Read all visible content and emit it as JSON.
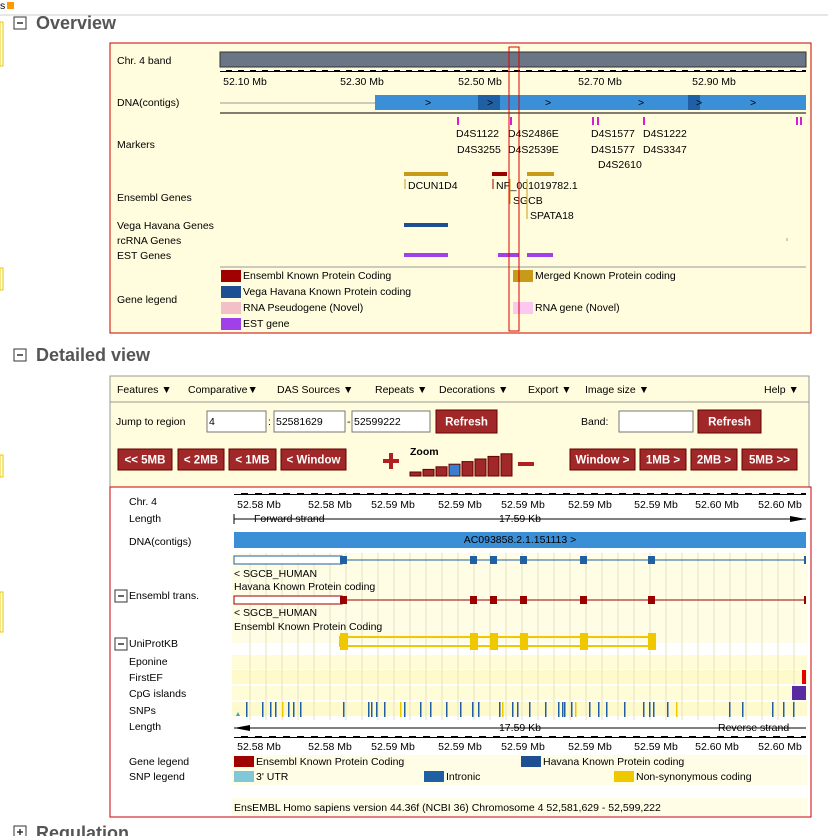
{
  "top_link": "s",
  "overview": {
    "heading": "Overview",
    "track_labels": [
      "Chr. 4 band",
      "DNA(contigs)",
      "Markers",
      "Ensembl Genes",
      "Vega Havana Genes",
      "rcRNA Genes",
      "EST Genes",
      "Gene legend"
    ],
    "scale_ticks": [
      "52.10 Mb",
      "52.30 Mb",
      "52.50 Mb",
      "52.70 Mb",
      "52.90 Mb"
    ],
    "markers": [
      "D4S1122",
      "D4S2486E",
      "D4S1577",
      "D4S1222",
      "D4S3255",
      "D4S2539E",
      "D4S1577",
      "D4S3347",
      "D4S2610"
    ],
    "genes": [
      "DCUN1D4",
      "NP_001019782.1",
      "SGCB",
      "SPATA18"
    ],
    "legend": [
      "Ensembl Known Protein Coding",
      "Vega Havana Known Protein coding",
      "RNA Pseudogene (Novel)",
      "EST gene",
      "Merged Known Protein coding",
      "RNA gene (Novel)"
    ]
  },
  "detailed": {
    "heading": "Detailed view",
    "menu": [
      "Features ▼",
      "Comparative▼",
      "DAS Sources ▼",
      "Repeats ▼",
      "Decorations ▼",
      "Export ▼",
      "Image size ▼",
      "Help ▼"
    ],
    "jump_label": "Jump to region",
    "chromosome": "4",
    "start": "52581629",
    "end": "52599222",
    "refresh": "Refresh",
    "band_label": "Band:",
    "band_refresh": "Refresh",
    "nav_left": [
      "<< 5MB",
      "< 2MB",
      "< 1MB",
      "< Window"
    ],
    "zoom": "Zoom",
    "nav_right": [
      "Window >",
      "1MB >",
      "2MB >",
      "5MB >>"
    ],
    "track_labels": [
      "Chr. 4",
      "Length",
      "DNA(contigs)",
      "Ensembl trans.",
      "UniProtKB",
      "Eponine",
      "FirstEF",
      "CpG islands",
      "SNPs",
      "Length",
      "Gene legend",
      "SNP legend"
    ],
    "scale_ticks_top": [
      "52.58 Mb",
      "52.58 Mb",
      "52.59 Mb",
      "52.59 Mb",
      "52.59 Mb",
      "52.59 Mb",
      "52.59 Mb",
      "52.60 Mb",
      "52.60 Mb"
    ],
    "scale_ticks_bottom": [
      "52.58 Mb",
      "52.58 Mb",
      "52.59 Mb",
      "52.59 Mb",
      "52.59 Mb",
      "52.59 Mb",
      "52.59 Mb",
      "52.60 Mb",
      "52.60 Mb"
    ],
    "forward_strand": "Forward strand",
    "length_top": "17.59 Kb",
    "length_bottom": "17.59 Kb",
    "reverse_strand": "Reverse strand",
    "contig": "AC093858.2.1.151113 >",
    "transcripts": [
      {
        "name": "< SGCB_HUMAN",
        "biotype": "Havana Known Protein coding"
      },
      {
        "name": "< SGCB_HUMAN",
        "biotype": "Ensembl Known Protein Coding"
      }
    ],
    "gene_legend": [
      "Ensembl Known Protein Coding",
      "Havana Known Protein coding"
    ],
    "snp_legend": [
      "3' UTR",
      "Intronic",
      "Non-synonymous coding"
    ],
    "footer": "EnsEMBL Homo sapiens version 44.36f (NCBI 36) Chromosome 4 52,581,629 - 52,599,222"
  },
  "next_heading": "Regulation"
}
